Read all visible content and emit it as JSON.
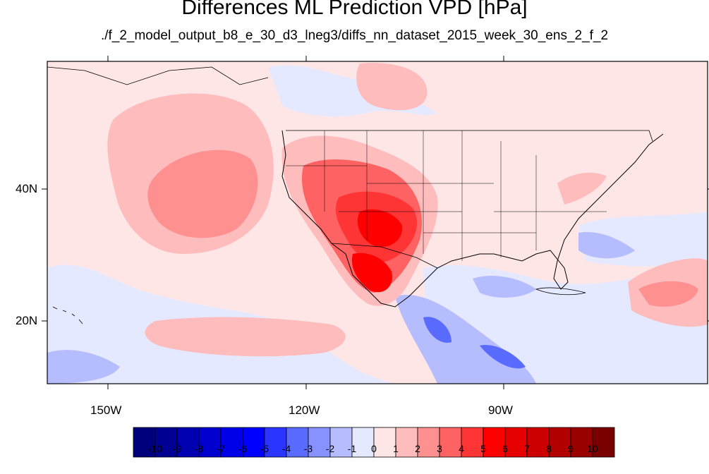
{
  "title": "Differences ML Prediction VPD [hPa]",
  "subtitle": "./f_2_model_output_b8_e_30_d3_lneg3/diffs_nn_dataset_2015_week_30_ens_2_f_2",
  "lat_labels": [
    "40N",
    "20N"
  ],
  "lon_labels": [
    "150W",
    "120W",
    "90W"
  ],
  "colorbar": {
    "labels": [
      "-10",
      "-9",
      "-8",
      "-7",
      "-6",
      "-5",
      "-4",
      "-3",
      "-2",
      "-1",
      "0",
      "1",
      "2",
      "3",
      "4",
      "5",
      "6",
      "7",
      "8",
      "9",
      "10"
    ],
    "colors": [
      "#00007c",
      "#000092",
      "#0000b0",
      "#0000cf",
      "#0000e8",
      "#0000ff",
      "#2a35ff",
      "#5a6cff",
      "#8792ff",
      "#b6bdff",
      "#e5e9ff",
      "#ffe6e6",
      "#ffbcbc",
      "#ff9090",
      "#ff6262",
      "#ff3535",
      "#ff0000",
      "#e60000",
      "#cc0000",
      "#b20000",
      "#990000",
      "#7a0000"
    ]
  },
  "map": {
    "background_color": "#ffe6e6",
    "extent": {
      "lon_min": -159,
      "lon_max": -60,
      "lat_min": 10,
      "lat_max": 59
    }
  }
}
